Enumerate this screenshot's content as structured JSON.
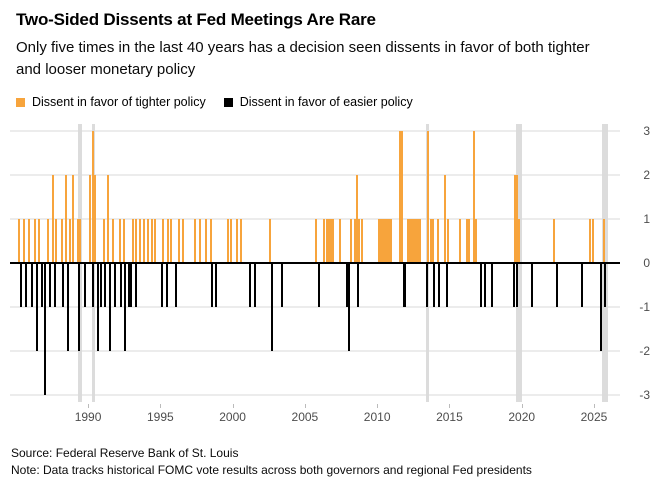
{
  "chart_data": {
    "type": "bar",
    "title": "Two-Sided Dissents at Fed Meetings Are Rare",
    "subtitle": "Only five times in the last 40 years has a decision seen dissents in favor of both tighter and looser monetary policy",
    "source": "Source: Federal Reserve Bank of St. Louis",
    "note": "Note: Data tracks historical FOMC vote results across both governors and regional Fed presidents",
    "xlabel": "",
    "ylabel": "",
    "xlim": [
      1984.6,
      2026.8
    ],
    "ylim": [
      -3.15,
      3.15
    ],
    "x_ticks": [
      1990,
      1995,
      2000,
      2005,
      2010,
      2015,
      2020,
      2025
    ],
    "y_ticks": [
      3,
      2,
      1,
      0,
      -1,
      -2,
      -3
    ],
    "grid": "horizontal",
    "legend_position": "top-left",
    "colors": {
      "tighter": "#F7A43C",
      "easier": "#000000",
      "two_sided_band": "#DCDCDC",
      "gridline": "#DADADA",
      "axis_text": "#4D4D4D"
    },
    "two_sided_bands": [
      [
        1989.32,
        1989.55
      ],
      [
        1990.25,
        1990.48
      ],
      [
        2013.38,
        2013.62
      ],
      [
        2019.58,
        2020.05
      ],
      [
        2025.58,
        2025.95
      ]
    ],
    "series": [
      {
        "name": "Dissent in favor of tighter policy",
        "key": "tighter",
        "color": "#F7A43C",
        "points": [
          [
            1985.2,
            1
          ],
          [
            1985.55,
            1
          ],
          [
            1985.9,
            1
          ],
          [
            1986.3,
            1
          ],
          [
            1986.6,
            1
          ],
          [
            1987.2,
            1
          ],
          [
            1987.55,
            2
          ],
          [
            1987.8,
            1
          ],
          [
            1988.2,
            1
          ],
          [
            1988.5,
            2
          ],
          [
            1988.75,
            1
          ],
          [
            1988.95,
            2
          ],
          [
            1989.3,
            1
          ],
          [
            1989.45,
            1
          ],
          [
            1990.1,
            2
          ],
          [
            1990.35,
            3
          ],
          [
            1990.5,
            2
          ],
          [
            1991.1,
            1
          ],
          [
            1991.35,
            2
          ],
          [
            1991.7,
            1
          ],
          [
            1992.2,
            1
          ],
          [
            1992.5,
            1
          ],
          [
            1993.1,
            1
          ],
          [
            1993.35,
            1
          ],
          [
            1993.6,
            1
          ],
          [
            1993.85,
            1
          ],
          [
            1994.15,
            1
          ],
          [
            1994.4,
            1
          ],
          [
            1994.65,
            1
          ],
          [
            1995.2,
            1
          ],
          [
            1995.5,
            1
          ],
          [
            1995.75,
            1
          ],
          [
            1996.3,
            1
          ],
          [
            1996.6,
            1
          ],
          [
            1997.4,
            1
          ],
          [
            1997.75,
            1
          ],
          [
            1998.15,
            1
          ],
          [
            1998.5,
            1
          ],
          [
            1999.65,
            1
          ],
          [
            1999.9,
            1
          ],
          [
            2000.3,
            1
          ],
          [
            2000.6,
            1
          ],
          [
            2002.6,
            1
          ],
          [
            2005.8,
            1
          ],
          [
            2006.3,
            1
          ],
          [
            2006.5,
            1
          ],
          [
            2006.65,
            1
          ],
          [
            2006.8,
            1
          ],
          [
            2006.95,
            1
          ],
          [
            2007.4,
            1
          ],
          [
            2008.2,
            1
          ],
          [
            2008.45,
            1
          ],
          [
            2008.6,
            2
          ],
          [
            2008.75,
            1
          ],
          [
            2008.95,
            1
          ],
          [
            2010.1,
            1
          ],
          [
            2010.25,
            1
          ],
          [
            2010.35,
            1
          ],
          [
            2010.5,
            1
          ],
          [
            2010.6,
            1
          ],
          [
            2010.75,
            1
          ],
          [
            2010.85,
            1
          ],
          [
            2010.95,
            1
          ],
          [
            2011.6,
            3
          ],
          [
            2011.75,
            3
          ],
          [
            2012.1,
            1
          ],
          [
            2012.25,
            1
          ],
          [
            2012.35,
            1
          ],
          [
            2012.5,
            1
          ],
          [
            2012.6,
            1
          ],
          [
            2012.75,
            1
          ],
          [
            2012.85,
            1
          ],
          [
            2012.95,
            1
          ],
          [
            2013.5,
            3
          ],
          [
            2013.7,
            1
          ],
          [
            2013.85,
            1
          ],
          [
            2014.2,
            1
          ],
          [
            2014.7,
            2
          ],
          [
            2014.9,
            1
          ],
          [
            2015.7,
            1
          ],
          [
            2016.2,
            1
          ],
          [
            2016.35,
            1
          ],
          [
            2016.7,
            3
          ],
          [
            2016.85,
            1
          ],
          [
            2019.55,
            2
          ],
          [
            2019.7,
            2
          ],
          [
            2019.8,
            1
          ],
          [
            2022.2,
            1
          ],
          [
            2024.7,
            1
          ],
          [
            2024.95,
            1
          ],
          [
            2025.68,
            1
          ]
        ]
      },
      {
        "name": "Dissent in favor of easier policy",
        "key": "easier",
        "color": "#000000",
        "points": [
          [
            1985.35,
            -1
          ],
          [
            1985.7,
            -1
          ],
          [
            1986.1,
            -1
          ],
          [
            1986.45,
            -2
          ],
          [
            1986.8,
            -1
          ],
          [
            1987.05,
            -3
          ],
          [
            1987.35,
            -1
          ],
          [
            1987.7,
            -1
          ],
          [
            1988.3,
            -1
          ],
          [
            1988.6,
            -2
          ],
          [
            1989.4,
            -2
          ],
          [
            1989.8,
            -1
          ],
          [
            1990.35,
            -1
          ],
          [
            1990.7,
            -2
          ],
          [
            1990.9,
            -1
          ],
          [
            1991.2,
            -1
          ],
          [
            1991.5,
            -2
          ],
          [
            1991.85,
            -1
          ],
          [
            1992.3,
            -1
          ],
          [
            1992.55,
            -2
          ],
          [
            1992.8,
            -1
          ],
          [
            1992.95,
            -1
          ],
          [
            1993.3,
            -1
          ],
          [
            1995.1,
            -1
          ],
          [
            1995.45,
            -1
          ],
          [
            1996.1,
            -1
          ],
          [
            1998.6,
            -1
          ],
          [
            1998.85,
            -1
          ],
          [
            2001.2,
            -1
          ],
          [
            2001.55,
            -1
          ],
          [
            2002.7,
            -2
          ],
          [
            2003.4,
            -1
          ],
          [
            2005.95,
            -1
          ],
          [
            2007.9,
            -1
          ],
          [
            2008.05,
            -2
          ],
          [
            2008.7,
            -1
          ],
          [
            2011.85,
            -1
          ],
          [
            2011.95,
            -1
          ],
          [
            2013.45,
            -1
          ],
          [
            2013.95,
            -1
          ],
          [
            2014.25,
            -1
          ],
          [
            2014.8,
            -1
          ],
          [
            2017.2,
            -1
          ],
          [
            2017.45,
            -1
          ],
          [
            2017.95,
            -1
          ],
          [
            2019.45,
            -1
          ],
          [
            2019.7,
            -1
          ],
          [
            2020.7,
            -1
          ],
          [
            2022.45,
            -1
          ],
          [
            2024.2,
            -1
          ],
          [
            2025.5,
            -2
          ],
          [
            2025.75,
            -1
          ]
        ]
      }
    ]
  }
}
